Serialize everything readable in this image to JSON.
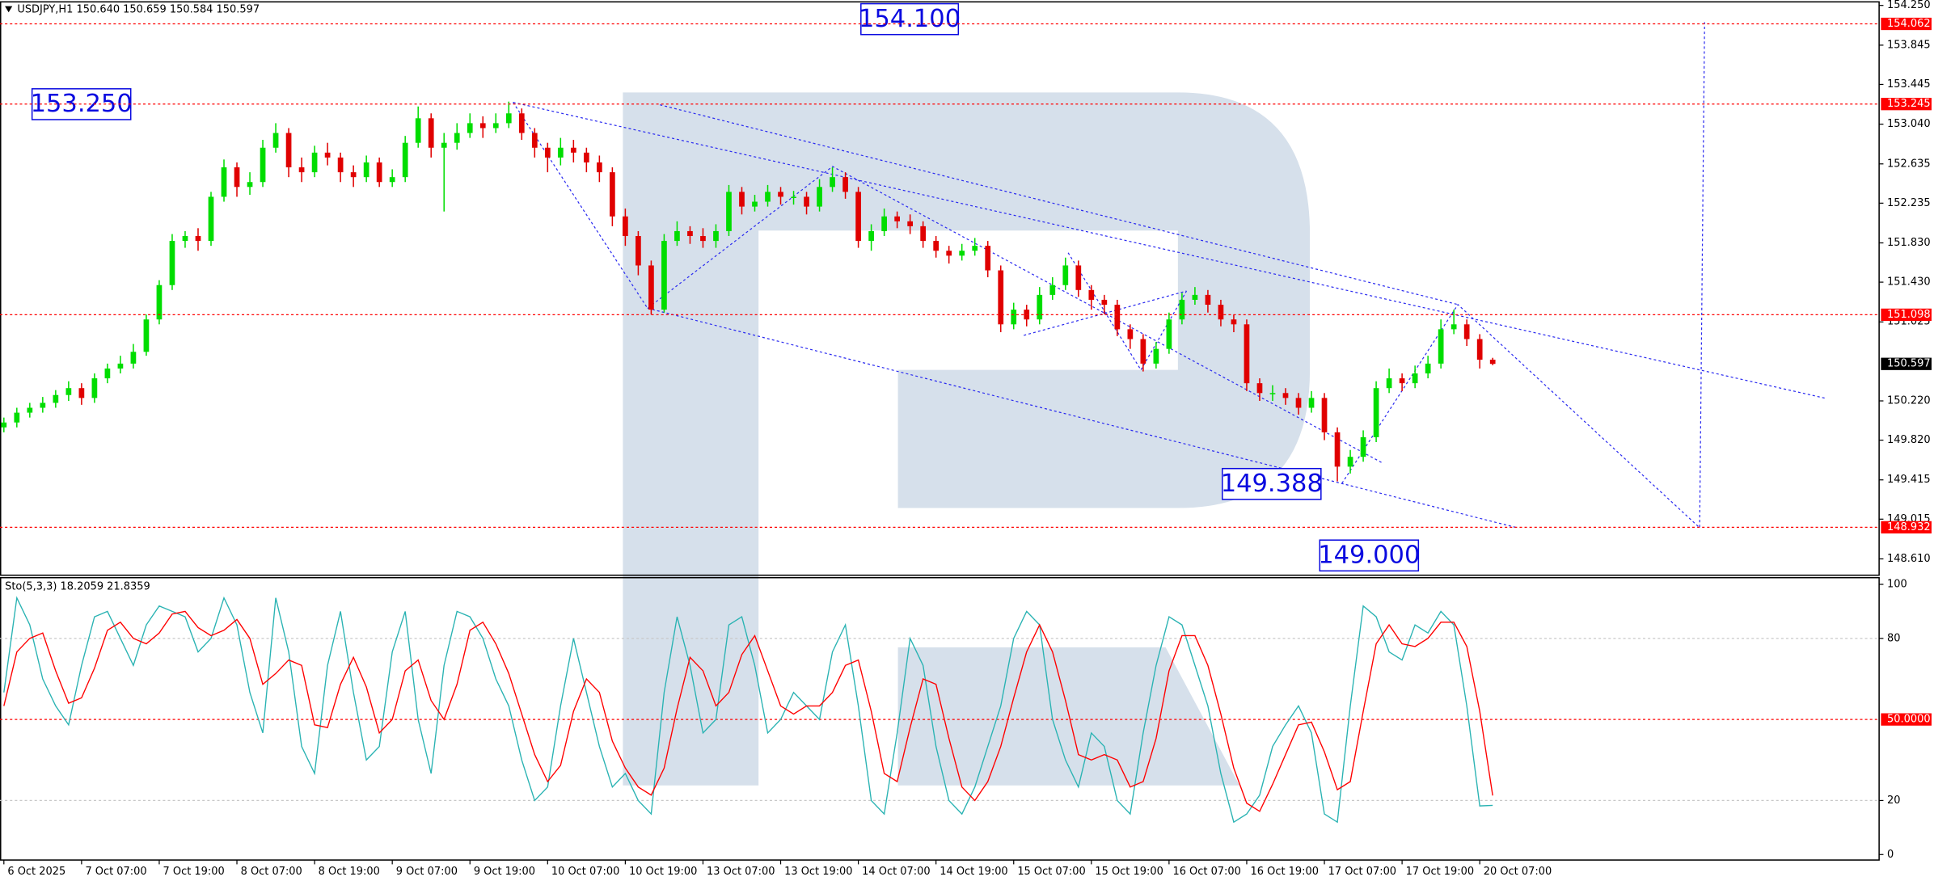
{
  "chart_data": [
    {
      "type": "candlestick",
      "title": "USDJPY,H1  150.640 150.659 150.584 150.597",
      "open": [
        149.95,
        150.0,
        150.1,
        150.15,
        150.2,
        150.28,
        150.35,
        150.25,
        150.45,
        150.55,
        150.6,
        150.72,
        151.05,
        151.4,
        151.85,
        151.9,
        151.85,
        152.3,
        152.6,
        152.4,
        152.45,
        152.8,
        152.95,
        152.6,
        152.55,
        152.75,
        152.7,
        152.55,
        152.5,
        152.65,
        152.45,
        152.5,
        152.85,
        153.1,
        152.8,
        152.85,
        152.95,
        153.05,
        153.0,
        153.05,
        153.15,
        152.95,
        152.8,
        152.7,
        152.8,
        152.75,
        152.65,
        152.55,
        152.1,
        151.9,
        151.6,
        151.15,
        151.85,
        151.95,
        151.9,
        151.85,
        151.95,
        152.35,
        152.2,
        152.25,
        152.35,
        152.3,
        152.3,
        152.2,
        152.4,
        152.5,
        152.35,
        151.85,
        151.95,
        152.1,
        152.05,
        152.0,
        151.85,
        151.75,
        151.7,
        151.75,
        151.8,
        151.55,
        151.0,
        151.15,
        151.05,
        151.3,
        151.4,
        151.6,
        151.35,
        151.25,
        151.2,
        150.95,
        150.85,
        150.6,
        150.75,
        151.05,
        151.25,
        151.3,
        151.2,
        151.05,
        151.0,
        150.4,
        150.3,
        150.3,
        150.25,
        150.15,
        150.25,
        149.9,
        149.55,
        149.65,
        149.85,
        150.35,
        150.45,
        150.4,
        150.5,
        150.6,
        150.95,
        151.0,
        150.85,
        150.64
      ],
      "high": [
        150.05,
        150.15,
        150.2,
        150.26,
        150.33,
        150.42,
        150.4,
        150.5,
        150.6,
        150.68,
        150.8,
        151.1,
        151.45,
        151.92,
        151.95,
        151.98,
        152.35,
        152.68,
        152.65,
        152.55,
        152.88,
        153.05,
        153.0,
        152.7,
        152.82,
        152.85,
        152.75,
        152.62,
        152.72,
        152.7,
        152.58,
        152.92,
        153.22,
        153.15,
        152.95,
        153.05,
        153.15,
        153.12,
        153.15,
        153.27,
        153.2,
        153.0,
        152.85,
        152.9,
        152.88,
        152.8,
        152.72,
        152.6,
        152.18,
        151.95,
        151.65,
        151.92,
        152.05,
        152.0,
        151.98,
        152.02,
        152.42,
        152.4,
        152.32,
        152.42,
        152.4,
        152.36,
        152.35,
        152.48,
        152.6,
        152.55,
        152.4,
        152.02,
        152.18,
        152.15,
        152.12,
        152.05,
        151.9,
        151.8,
        151.82,
        151.88,
        151.85,
        151.6,
        151.22,
        151.2,
        151.38,
        151.48,
        151.68,
        151.65,
        151.4,
        151.3,
        151.25,
        151.0,
        150.9,
        150.82,
        151.12,
        151.32,
        151.38,
        151.35,
        151.25,
        151.1,
        151.05,
        150.45,
        150.38,
        150.35,
        150.3,
        150.32,
        150.3,
        149.95,
        149.72,
        149.92,
        150.42,
        150.55,
        150.5,
        150.58,
        150.68,
        151.05,
        151.15,
        151.05,
        150.9,
        150.659
      ],
      "low": [
        149.9,
        149.95,
        150.05,
        150.1,
        150.15,
        150.22,
        150.18,
        150.2,
        150.4,
        150.5,
        150.55,
        150.68,
        151.0,
        151.35,
        151.78,
        151.75,
        151.8,
        152.25,
        152.3,
        152.32,
        152.4,
        152.75,
        152.5,
        152.45,
        152.5,
        152.62,
        152.45,
        152.4,
        152.45,
        152.4,
        152.4,
        152.45,
        152.8,
        152.7,
        152.15,
        152.78,
        152.9,
        152.9,
        152.95,
        153.0,
        152.88,
        152.7,
        152.55,
        152.62,
        152.65,
        152.55,
        152.45,
        152.0,
        151.8,
        151.5,
        151.1,
        151.12,
        151.8,
        151.82,
        151.78,
        151.78,
        151.9,
        152.12,
        152.15,
        152.2,
        152.22,
        152.22,
        152.12,
        152.15,
        152.35,
        152.28,
        151.78,
        151.75,
        151.9,
        151.98,
        151.92,
        151.78,
        151.68,
        151.62,
        151.65,
        151.7,
        151.48,
        150.92,
        150.95,
        150.98,
        151.0,
        151.25,
        151.35,
        151.28,
        151.15,
        151.1,
        150.88,
        150.75,
        150.52,
        150.55,
        150.7,
        151.0,
        151.2,
        151.12,
        150.98,
        150.92,
        150.32,
        150.22,
        150.22,
        150.18,
        150.08,
        150.1,
        149.82,
        149.4,
        149.48,
        149.6,
        149.8,
        150.3,
        150.32,
        150.35,
        150.45,
        150.55,
        150.9,
        150.78,
        150.55,
        150.584
      ],
      "close": [
        150.0,
        150.1,
        150.15,
        150.2,
        150.28,
        150.35,
        150.25,
        150.45,
        150.55,
        150.6,
        150.72,
        151.05,
        151.4,
        151.85,
        151.9,
        151.85,
        152.3,
        152.6,
        152.4,
        152.45,
        152.8,
        152.95,
        152.6,
        152.55,
        152.75,
        152.7,
        152.55,
        152.5,
        152.65,
        152.45,
        152.5,
        152.85,
        153.1,
        152.8,
        152.85,
        152.95,
        153.05,
        153.0,
        153.05,
        153.15,
        152.95,
        152.8,
        152.7,
        152.8,
        152.75,
        152.65,
        152.55,
        152.1,
        151.9,
        151.6,
        151.15,
        151.85,
        151.95,
        151.9,
        151.85,
        151.95,
        152.35,
        152.2,
        152.25,
        152.35,
        152.3,
        152.3,
        152.2,
        152.4,
        152.5,
        152.35,
        151.85,
        151.95,
        152.1,
        152.05,
        152.0,
        151.85,
        151.75,
        151.7,
        151.75,
        151.8,
        151.55,
        151.0,
        151.15,
        151.05,
        151.3,
        151.4,
        151.6,
        151.35,
        151.25,
        151.2,
        150.95,
        150.85,
        150.6,
        150.75,
        151.05,
        151.25,
        151.3,
        151.2,
        151.05,
        151.0,
        150.4,
        150.3,
        150.3,
        150.25,
        150.15,
        150.25,
        149.9,
        149.55,
        149.65,
        149.85,
        150.35,
        150.45,
        150.4,
        150.5,
        150.6,
        150.95,
        151.0,
        150.85,
        150.64,
        150.597
      ],
      "up_color": "#00dd00",
      "down_color": "#e00000",
      "xlim": [
        -0.3,
        144.8
      ],
      "ylim": [
        148.45,
        154.28
      ],
      "yticks": [
        {
          "value": 154.25,
          "label": "154.250"
        },
        {
          "value": 153.845,
          "label": "153.845"
        },
        {
          "value": 153.445,
          "label": "153.445"
        },
        {
          "value": 153.04,
          "label": "153.040"
        },
        {
          "value": 152.635,
          "label": "152.635"
        },
        {
          "value": 152.235,
          "label": "152.235"
        },
        {
          "value": 151.83,
          "label": "151.830"
        },
        {
          "value": 151.43,
          "label": "151.430"
        },
        {
          "value": 151.025,
          "label": "151.025"
        },
        {
          "value": 150.22,
          "label": "150.220"
        },
        {
          "value": 149.82,
          "label": "149.820"
        },
        {
          "value": 149.415,
          "label": "149.415"
        },
        {
          "value": 149.015,
          "label": "149.015"
        },
        {
          "value": 148.61,
          "label": "148.610"
        }
      ],
      "xticks": [
        {
          "value": 0,
          "label": "6 Oct 2025"
        },
        {
          "value": 6,
          "label": "7 Oct 07:00"
        },
        {
          "value": 12,
          "label": "7 Oct 19:00"
        },
        {
          "value": 18,
          "label": "8 Oct 07:00"
        },
        {
          "value": 24,
          "label": "8 Oct 19:00"
        },
        {
          "value": 30,
          "label": "9 Oct 07:00"
        },
        {
          "value": 36,
          "label": "9 Oct 19:00"
        },
        {
          "value": 42,
          "label": "10 Oct 07:00"
        },
        {
          "value": 48,
          "label": "10 Oct 19:00"
        },
        {
          "value": 54,
          "label": "13 Oct 07:00"
        },
        {
          "value": 60,
          "label": "13 Oct 19:00"
        },
        {
          "value": 66,
          "label": "14 Oct 07:00"
        },
        {
          "value": 72,
          "label": "14 Oct 19:00"
        },
        {
          "value": 78,
          "label": "15 Oct 07:00"
        },
        {
          "value": 84,
          "label": "15 Oct 19:00"
        },
        {
          "value": 90,
          "label": "16 Oct 07:00"
        },
        {
          "value": 96,
          "label": "16 Oct 19:00"
        },
        {
          "value": 102,
          "label": "17 Oct 07:00"
        },
        {
          "value": 108,
          "label": "17 Oct 19:00"
        },
        {
          "value": 114,
          "label": "20 Oct 07:00"
        }
      ],
      "levels": [
        154.062,
        153.245,
        151.098,
        148.932
      ],
      "level_color": "#ff0000",
      "annotations": [
        "154.100",
        "153.250",
        "149.388",
        "149.000"
      ],
      "annotation_color": "#0a0ae0"
    },
    {
      "type": "line",
      "title": "Sto(5,3,3) 18.2059 21.8359",
      "series": [
        {
          "color": "#2ab3b3",
          "values": [
            60,
            95,
            85,
            65,
            55,
            48,
            70,
            88,
            90,
            80,
            70,
            85,
            92,
            90,
            88,
            75,
            80,
            95,
            85,
            60,
            45,
            95,
            75,
            40,
            30,
            70,
            90,
            60,
            35,
            40,
            75,
            90,
            50,
            30,
            70,
            90,
            88,
            80,
            65,
            55,
            35,
            20,
            25,
            55,
            80,
            60,
            40,
            25,
            30,
            20,
            15,
            60,
            88,
            70,
            45,
            50,
            85,
            88,
            70,
            45,
            50,
            60,
            55,
            50,
            75,
            85,
            55,
            20,
            15,
            45,
            80,
            70,
            40,
            20,
            15,
            25,
            40,
            55,
            80,
            90,
            85,
            50,
            35,
            25,
            45,
            40,
            20,
            15,
            45,
            70,
            88,
            85,
            70,
            55,
            30,
            12,
            15,
            22,
            40,
            48,
            55,
            45,
            15,
            12,
            55,
            92,
            88,
            75,
            72,
            85,
            82,
            90,
            85,
            55,
            18,
            18.2059
          ]
        },
        {
          "color": "#ff0000",
          "values": [
            55,
            75,
            80,
            82,
            68,
            56,
            58,
            69,
            83,
            86,
            80,
            78,
            82,
            89,
            90,
            84,
            81,
            83,
            87,
            80,
            63,
            67,
            72,
            70,
            48,
            47,
            63,
            73,
            62,
            45,
            50,
            68,
            72,
            57,
            50,
            63,
            83,
            86,
            78,
            67,
            52,
            37,
            27,
            33,
            53,
            65,
            60,
            42,
            32,
            25,
            22,
            32,
            54,
            73,
            68,
            55,
            60,
            74,
            81,
            68,
            55,
            52,
            55,
            55,
            60,
            70,
            72,
            53,
            30,
            27,
            47,
            65,
            63,
            43,
            25,
            20,
            27,
            40,
            58,
            75,
            85,
            75,
            57,
            37,
            35,
            37,
            35,
            25,
            27,
            43,
            68,
            81,
            81,
            70,
            52,
            32,
            19,
            16,
            26,
            37,
            48,
            49,
            38,
            24,
            27,
            53,
            78,
            85,
            78,
            77,
            80,
            86,
            86,
            77,
            53,
            21.8359
          ]
        }
      ],
      "ylim": [
        -1.8,
        102.7
      ],
      "yticks": [
        0,
        20,
        80,
        100
      ],
      "levels": [
        {
          "value": 80,
          "color": "#c8c8c8"
        },
        {
          "value": 50,
          "label": "50.0000",
          "color": "#ff0000"
        },
        {
          "value": 20,
          "color": "#c8c8c8"
        }
      ]
    }
  ]
}
